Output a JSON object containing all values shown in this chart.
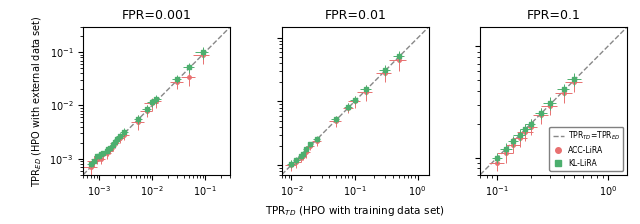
{
  "panels": [
    {
      "title": "FPR=0.001",
      "xlim": [
        0.0005,
        0.3
      ],
      "ylim": [
        0.0005,
        0.3
      ],
      "acc_x": [
        0.0007,
        0.0008,
        0.0009,
        0.001,
        0.0011,
        0.0012,
        0.0014,
        0.0015,
        0.0016,
        0.0018,
        0.002,
        0.0022,
        0.0025,
        0.003,
        0.0055,
        0.008,
        0.01,
        0.012,
        0.03,
        0.05,
        0.09
      ],
      "acc_y": [
        0.0007,
        0.0009,
        0.001,
        0.0011,
        0.001,
        0.0012,
        0.0013,
        0.0014,
        0.0015,
        0.0017,
        0.002,
        0.0022,
        0.0025,
        0.0028,
        0.005,
        0.008,
        0.011,
        0.012,
        0.028,
        0.035,
        0.09
      ],
      "acc_xerr": [
        0.0002,
        0.0002,
        0.0002,
        0.0002,
        0.0002,
        0.0002,
        0.0003,
        0.0003,
        0.0003,
        0.0003,
        0.0004,
        0.0004,
        0.0005,
        0.0006,
        0.0015,
        0.002,
        0.003,
        0.003,
        0.008,
        0.015,
        0.03
      ],
      "acc_yerr": [
        0.0002,
        0.0002,
        0.0002,
        0.0002,
        0.0002,
        0.0002,
        0.0003,
        0.0003,
        0.0003,
        0.0003,
        0.0004,
        0.0004,
        0.0005,
        0.0006,
        0.0015,
        0.002,
        0.003,
        0.003,
        0.008,
        0.012,
        0.03
      ],
      "kl_x": [
        0.0007,
        0.0008,
        0.0009,
        0.001,
        0.0011,
        0.0012,
        0.0014,
        0.0015,
        0.0016,
        0.0018,
        0.002,
        0.0022,
        0.0025,
        0.003,
        0.0055,
        0.008,
        0.01,
        0.012,
        0.03,
        0.05,
        0.09
      ],
      "kl_y": [
        0.0008,
        0.0009,
        0.0011,
        0.0011,
        0.0012,
        0.0013,
        0.0014,
        0.0015,
        0.0016,
        0.0018,
        0.0021,
        0.0023,
        0.0027,
        0.0032,
        0.0055,
        0.0085,
        0.0115,
        0.013,
        0.032,
        0.052,
        0.1
      ],
      "kl_xerr": [
        0.0001,
        0.0001,
        0.0001,
        0.0001,
        0.0001,
        0.0001,
        0.0002,
        0.0002,
        0.0002,
        0.0002,
        0.0003,
        0.0003,
        0.0004,
        0.0005,
        0.001,
        0.0015,
        0.002,
        0.0025,
        0.006,
        0.012,
        0.025
      ],
      "kl_yerr": [
        0.0001,
        0.0001,
        0.0001,
        0.0001,
        0.0001,
        0.0001,
        0.0002,
        0.0002,
        0.0002,
        0.0002,
        0.0003,
        0.0003,
        0.0004,
        0.0005,
        0.001,
        0.0015,
        0.002,
        0.0025,
        0.006,
        0.012,
        0.025
      ]
    },
    {
      "title": "FPR=0.01",
      "xlim": [
        0.007,
        1.5
      ],
      "ylim": [
        0.007,
        1.5
      ],
      "acc_x": [
        0.01,
        0.012,
        0.014,
        0.015,
        0.017,
        0.02,
        0.025,
        0.05,
        0.08,
        0.1,
        0.15,
        0.3,
        0.5
      ],
      "acc_y": [
        0.01,
        0.011,
        0.013,
        0.014,
        0.016,
        0.02,
        0.024,
        0.05,
        0.08,
        0.1,
        0.14,
        0.28,
        0.45
      ],
      "acc_xerr": [
        0.002,
        0.002,
        0.002,
        0.002,
        0.003,
        0.003,
        0.004,
        0.01,
        0.015,
        0.02,
        0.04,
        0.08,
        0.15
      ],
      "acc_yerr": [
        0.002,
        0.002,
        0.002,
        0.002,
        0.003,
        0.003,
        0.004,
        0.01,
        0.015,
        0.02,
        0.04,
        0.08,
        0.15
      ],
      "kl_x": [
        0.01,
        0.012,
        0.014,
        0.015,
        0.017,
        0.02,
        0.025,
        0.05,
        0.08,
        0.1,
        0.15,
        0.3,
        0.5
      ],
      "kl_y": [
        0.0105,
        0.012,
        0.014,
        0.015,
        0.018,
        0.021,
        0.026,
        0.052,
        0.082,
        0.105,
        0.155,
        0.31,
        0.52
      ],
      "kl_xerr": [
        0.0015,
        0.0015,
        0.0015,
        0.0015,
        0.002,
        0.002,
        0.003,
        0.007,
        0.012,
        0.015,
        0.03,
        0.06,
        0.1
      ],
      "kl_yerr": [
        0.0015,
        0.0015,
        0.0015,
        0.0015,
        0.002,
        0.002,
        0.003,
        0.007,
        0.012,
        0.015,
        0.03,
        0.06,
        0.1
      ]
    },
    {
      "title": "FPR=0.1",
      "xlim": [
        0.07,
        1.5
      ],
      "ylim": [
        0.07,
        1.5
      ],
      "acc_x": [
        0.1,
        0.12,
        0.14,
        0.16,
        0.18,
        0.2,
        0.25,
        0.3,
        0.4,
        0.5
      ],
      "acc_y": [
        0.09,
        0.11,
        0.13,
        0.15,
        0.17,
        0.19,
        0.24,
        0.29,
        0.38,
        0.48
      ],
      "acc_xerr": [
        0.015,
        0.02,
        0.02,
        0.025,
        0.03,
        0.03,
        0.04,
        0.05,
        0.07,
        0.09
      ],
      "acc_yerr": [
        0.015,
        0.02,
        0.02,
        0.025,
        0.03,
        0.03,
        0.04,
        0.05,
        0.07,
        0.09
      ],
      "kl_x": [
        0.1,
        0.12,
        0.14,
        0.16,
        0.18,
        0.2,
        0.25,
        0.3,
        0.4,
        0.5
      ],
      "kl_y": [
        0.1,
        0.12,
        0.14,
        0.16,
        0.18,
        0.2,
        0.25,
        0.31,
        0.41,
        0.51
      ],
      "kl_xerr": [
        0.01,
        0.015,
        0.015,
        0.02,
        0.02,
        0.02,
        0.03,
        0.04,
        0.05,
        0.07
      ],
      "kl_yerr": [
        0.01,
        0.015,
        0.015,
        0.02,
        0.02,
        0.02,
        0.03,
        0.04,
        0.05,
        0.07
      ]
    }
  ],
  "ylabel": "TPR$_{ED}$ (HPO with external data set)",
  "xlabel": "TPR$_{TD}$ (HPO with training data set)",
  "acc_color": "#e87070",
  "kl_color": "#4caf6e",
  "diag_color": "#888888",
  "legend_labels": [
    "TPR$_{TD}$=TPR$_{ED}$",
    "ACC-LiRA",
    "KL-LiRA"
  ]
}
